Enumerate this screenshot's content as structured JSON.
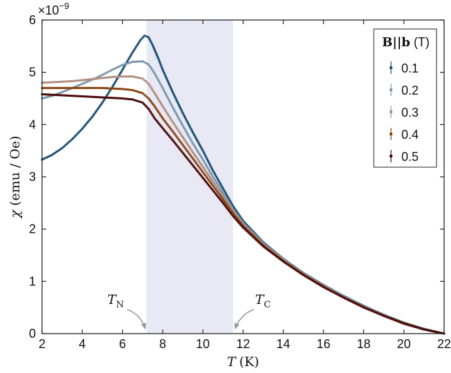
{
  "chart_data": {
    "type": "scatter",
    "x_label_symbol": "T",
    "x_label_unit": "(K)",
    "y_label_symbol": "χ",
    "y_label_unit": "(emu / Oe)",
    "y_multiplier": "×10",
    "y_multiplier_exp": "−9",
    "xlim": [
      2,
      22
    ],
    "ylim": [
      0,
      6
    ],
    "x_ticks": [
      "2",
      "4",
      "6",
      "8",
      "10",
      "12",
      "14",
      "16",
      "18",
      "20",
      "22"
    ],
    "y_ticks": [
      "0",
      "1",
      "2",
      "3",
      "4",
      "5",
      "6"
    ],
    "shaded_region": [
      7.2,
      11.5
    ],
    "shaded_color": "#e8e9f5",
    "annotations": [
      {
        "id": "TN",
        "symbol": "T",
        "sub": "N",
        "target_x": 7.2
      },
      {
        "id": "TC",
        "symbol": "T",
        "sub": "C",
        "target_x": 11.5
      }
    ],
    "legend_title_bold": "B||b",
    "legend_title_unit": "(T)",
    "legend_location": "top-right",
    "series": [
      {
        "name": "0.1",
        "color": "#1b4f72",
        "points": [
          [
            2,
            3.33
          ],
          [
            2.5,
            3.42
          ],
          [
            3,
            3.55
          ],
          [
            3.5,
            3.72
          ],
          [
            4,
            3.92
          ],
          [
            4.5,
            4.15
          ],
          [
            5,
            4.42
          ],
          [
            5.5,
            4.72
          ],
          [
            6,
            5.05
          ],
          [
            6.5,
            5.38
          ],
          [
            6.9,
            5.62
          ],
          [
            7.1,
            5.7
          ],
          [
            7.3,
            5.67
          ],
          [
            7.5,
            5.52
          ],
          [
            7.8,
            5.25
          ],
          [
            8,
            5.05
          ],
          [
            8.5,
            4.62
          ],
          [
            9,
            4.22
          ],
          [
            9.5,
            3.85
          ],
          [
            10,
            3.5
          ],
          [
            10.5,
            3.12
          ],
          [
            11,
            2.78
          ],
          [
            11.5,
            2.44
          ],
          [
            12,
            2.16
          ],
          [
            13,
            1.75
          ],
          [
            14,
            1.43
          ],
          [
            15,
            1.16
          ],
          [
            16,
            0.93
          ],
          [
            17,
            0.72
          ],
          [
            18,
            0.53
          ],
          [
            19,
            0.36
          ],
          [
            20,
            0.21
          ],
          [
            21,
            0.09
          ],
          [
            22,
            0.0
          ]
        ]
      },
      {
        "name": "0.2",
        "color": "#7e97ab",
        "points": [
          [
            2,
            4.5
          ],
          [
            2.5,
            4.55
          ],
          [
            3,
            4.62
          ],
          [
            3.5,
            4.7
          ],
          [
            4,
            4.78
          ],
          [
            4.5,
            4.86
          ],
          [
            5,
            4.95
          ],
          [
            5.5,
            5.05
          ],
          [
            6,
            5.14
          ],
          [
            6.5,
            5.2
          ],
          [
            7,
            5.21
          ],
          [
            7.3,
            5.15
          ],
          [
            7.6,
            4.98
          ],
          [
            8,
            4.7
          ],
          [
            8.5,
            4.33
          ],
          [
            9,
            3.98
          ],
          [
            9.5,
            3.64
          ],
          [
            10,
            3.33
          ],
          [
            10.5,
            3.0
          ],
          [
            11,
            2.7
          ],
          [
            11.5,
            2.38
          ],
          [
            12,
            2.12
          ],
          [
            13,
            1.73
          ],
          [
            14,
            1.42
          ],
          [
            15,
            1.15
          ],
          [
            16,
            0.92
          ],
          [
            17,
            0.71
          ],
          [
            18,
            0.52
          ],
          [
            19,
            0.35
          ],
          [
            20,
            0.2
          ],
          [
            21,
            0.08
          ],
          [
            22,
            0.0
          ]
        ]
      },
      {
        "name": "0.3",
        "color": "#b08f80",
        "points": [
          [
            2,
            4.8
          ],
          [
            2.5,
            4.81
          ],
          [
            3,
            4.82
          ],
          [
            3.5,
            4.83
          ],
          [
            4,
            4.85
          ],
          [
            4.5,
            4.87
          ],
          [
            5,
            4.89
          ],
          [
            5.5,
            4.91
          ],
          [
            6,
            4.92
          ],
          [
            6.5,
            4.92
          ],
          [
            7,
            4.88
          ],
          [
            7.3,
            4.78
          ],
          [
            7.6,
            4.6
          ],
          [
            8,
            4.35
          ],
          [
            8.5,
            4.05
          ],
          [
            9,
            3.76
          ],
          [
            9.5,
            3.47
          ],
          [
            10,
            3.19
          ],
          [
            10.5,
            2.91
          ],
          [
            11,
            2.63
          ],
          [
            11.5,
            2.34
          ],
          [
            12,
            2.09
          ],
          [
            13,
            1.71
          ],
          [
            14,
            1.41
          ],
          [
            15,
            1.14
          ],
          [
            16,
            0.91
          ],
          [
            17,
            0.7
          ],
          [
            18,
            0.51
          ],
          [
            19,
            0.35
          ],
          [
            20,
            0.2
          ],
          [
            21,
            0.08
          ],
          [
            22,
            0.0
          ]
        ]
      },
      {
        "name": "0.4",
        "color": "#8b4513",
        "points": [
          [
            2,
            4.7
          ],
          [
            2.5,
            4.7
          ],
          [
            3,
            4.7
          ],
          [
            3.5,
            4.7
          ],
          [
            4,
            4.7
          ],
          [
            4.5,
            4.7
          ],
          [
            5,
            4.7
          ],
          [
            5.5,
            4.69
          ],
          [
            6,
            4.68
          ],
          [
            6.5,
            4.66
          ],
          [
            7,
            4.6
          ],
          [
            7.3,
            4.5
          ],
          [
            7.6,
            4.35
          ],
          [
            8,
            4.12
          ],
          [
            8.5,
            3.87
          ],
          [
            9,
            3.61
          ],
          [
            9.5,
            3.35
          ],
          [
            10,
            3.09
          ],
          [
            10.5,
            2.83
          ],
          [
            11,
            2.57
          ],
          [
            11.5,
            2.3
          ],
          [
            12,
            2.06
          ],
          [
            13,
            1.69
          ],
          [
            14,
            1.39
          ],
          [
            15,
            1.13
          ],
          [
            16,
            0.9
          ],
          [
            17,
            0.69
          ],
          [
            18,
            0.51
          ],
          [
            19,
            0.34
          ],
          [
            20,
            0.2
          ],
          [
            21,
            0.08
          ],
          [
            22,
            0.0
          ]
        ]
      },
      {
        "name": "0.5",
        "color": "#4a0a0a",
        "points": [
          [
            2,
            4.58
          ],
          [
            2.5,
            4.57
          ],
          [
            3,
            4.56
          ],
          [
            3.5,
            4.55
          ],
          [
            4,
            4.54
          ],
          [
            4.5,
            4.53
          ],
          [
            5,
            4.52
          ],
          [
            5.5,
            4.51
          ],
          [
            6,
            4.5
          ],
          [
            6.5,
            4.48
          ],
          [
            7,
            4.42
          ],
          [
            7.3,
            4.3
          ],
          [
            7.6,
            4.12
          ],
          [
            8,
            3.93
          ],
          [
            8.5,
            3.7
          ],
          [
            9,
            3.46
          ],
          [
            9.5,
            3.22
          ],
          [
            10,
            2.98
          ],
          [
            10.5,
            2.74
          ],
          [
            11,
            2.5
          ],
          [
            11.5,
            2.25
          ],
          [
            12,
            2.03
          ],
          [
            13,
            1.67
          ],
          [
            14,
            1.38
          ],
          [
            15,
            1.12
          ],
          [
            16,
            0.89
          ],
          [
            17,
            0.69
          ],
          [
            18,
            0.5
          ],
          [
            19,
            0.34
          ],
          [
            20,
            0.19
          ],
          [
            21,
            0.08
          ],
          [
            22,
            0.0
          ]
        ]
      }
    ]
  }
}
